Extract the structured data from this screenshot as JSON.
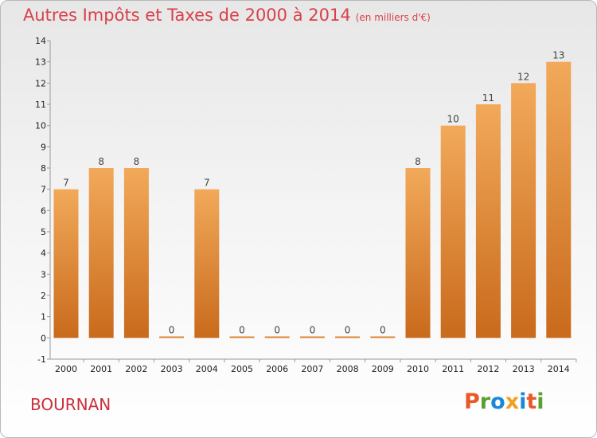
{
  "header": {
    "title": "Autres Impôts et Taxes de 2000 à 2014",
    "unit": "(en milliers d'€)"
  },
  "footer": {
    "commune": "BOURNAN",
    "logo": "Proxiti"
  },
  "colors": {
    "bar_top": "#f2a95a",
    "bar_bottom": "#c96a1c",
    "title": "#d8414a",
    "logo_letters": [
      "#e8592a",
      "#5aa02c",
      "#1e88d8",
      "#f0a020",
      "#1e88d8",
      "#e8592a",
      "#5aa02c"
    ]
  },
  "chart_data": {
    "type": "bar",
    "title": "Autres Impôts et Taxes de 2000 à 2014",
    "subtitle": "(en milliers d'€)",
    "categories": [
      "2000",
      "2001",
      "2002",
      "2003",
      "2004",
      "2005",
      "2006",
      "2007",
      "2008",
      "2009",
      "2010",
      "2011",
      "2012",
      "2013",
      "2014"
    ],
    "values": [
      7,
      8,
      8,
      0,
      7,
      0,
      0,
      0,
      0,
      0,
      8,
      10,
      11,
      12,
      13
    ],
    "value_labels": [
      "7",
      "8",
      "8",
      "0",
      "7",
      "0",
      "0",
      "0",
      "0",
      "0",
      "8",
      "10",
      "11",
      "12",
      "13"
    ],
    "ylim": [
      -1,
      14
    ],
    "yticks": [
      "-1",
      "0",
      "1",
      "2",
      "3",
      "4",
      "5",
      "6",
      "7",
      "8",
      "9",
      "10",
      "11",
      "12",
      "13",
      "14"
    ],
    "xlabel": "",
    "ylabel": "",
    "grid": false,
    "legend": "none"
  }
}
